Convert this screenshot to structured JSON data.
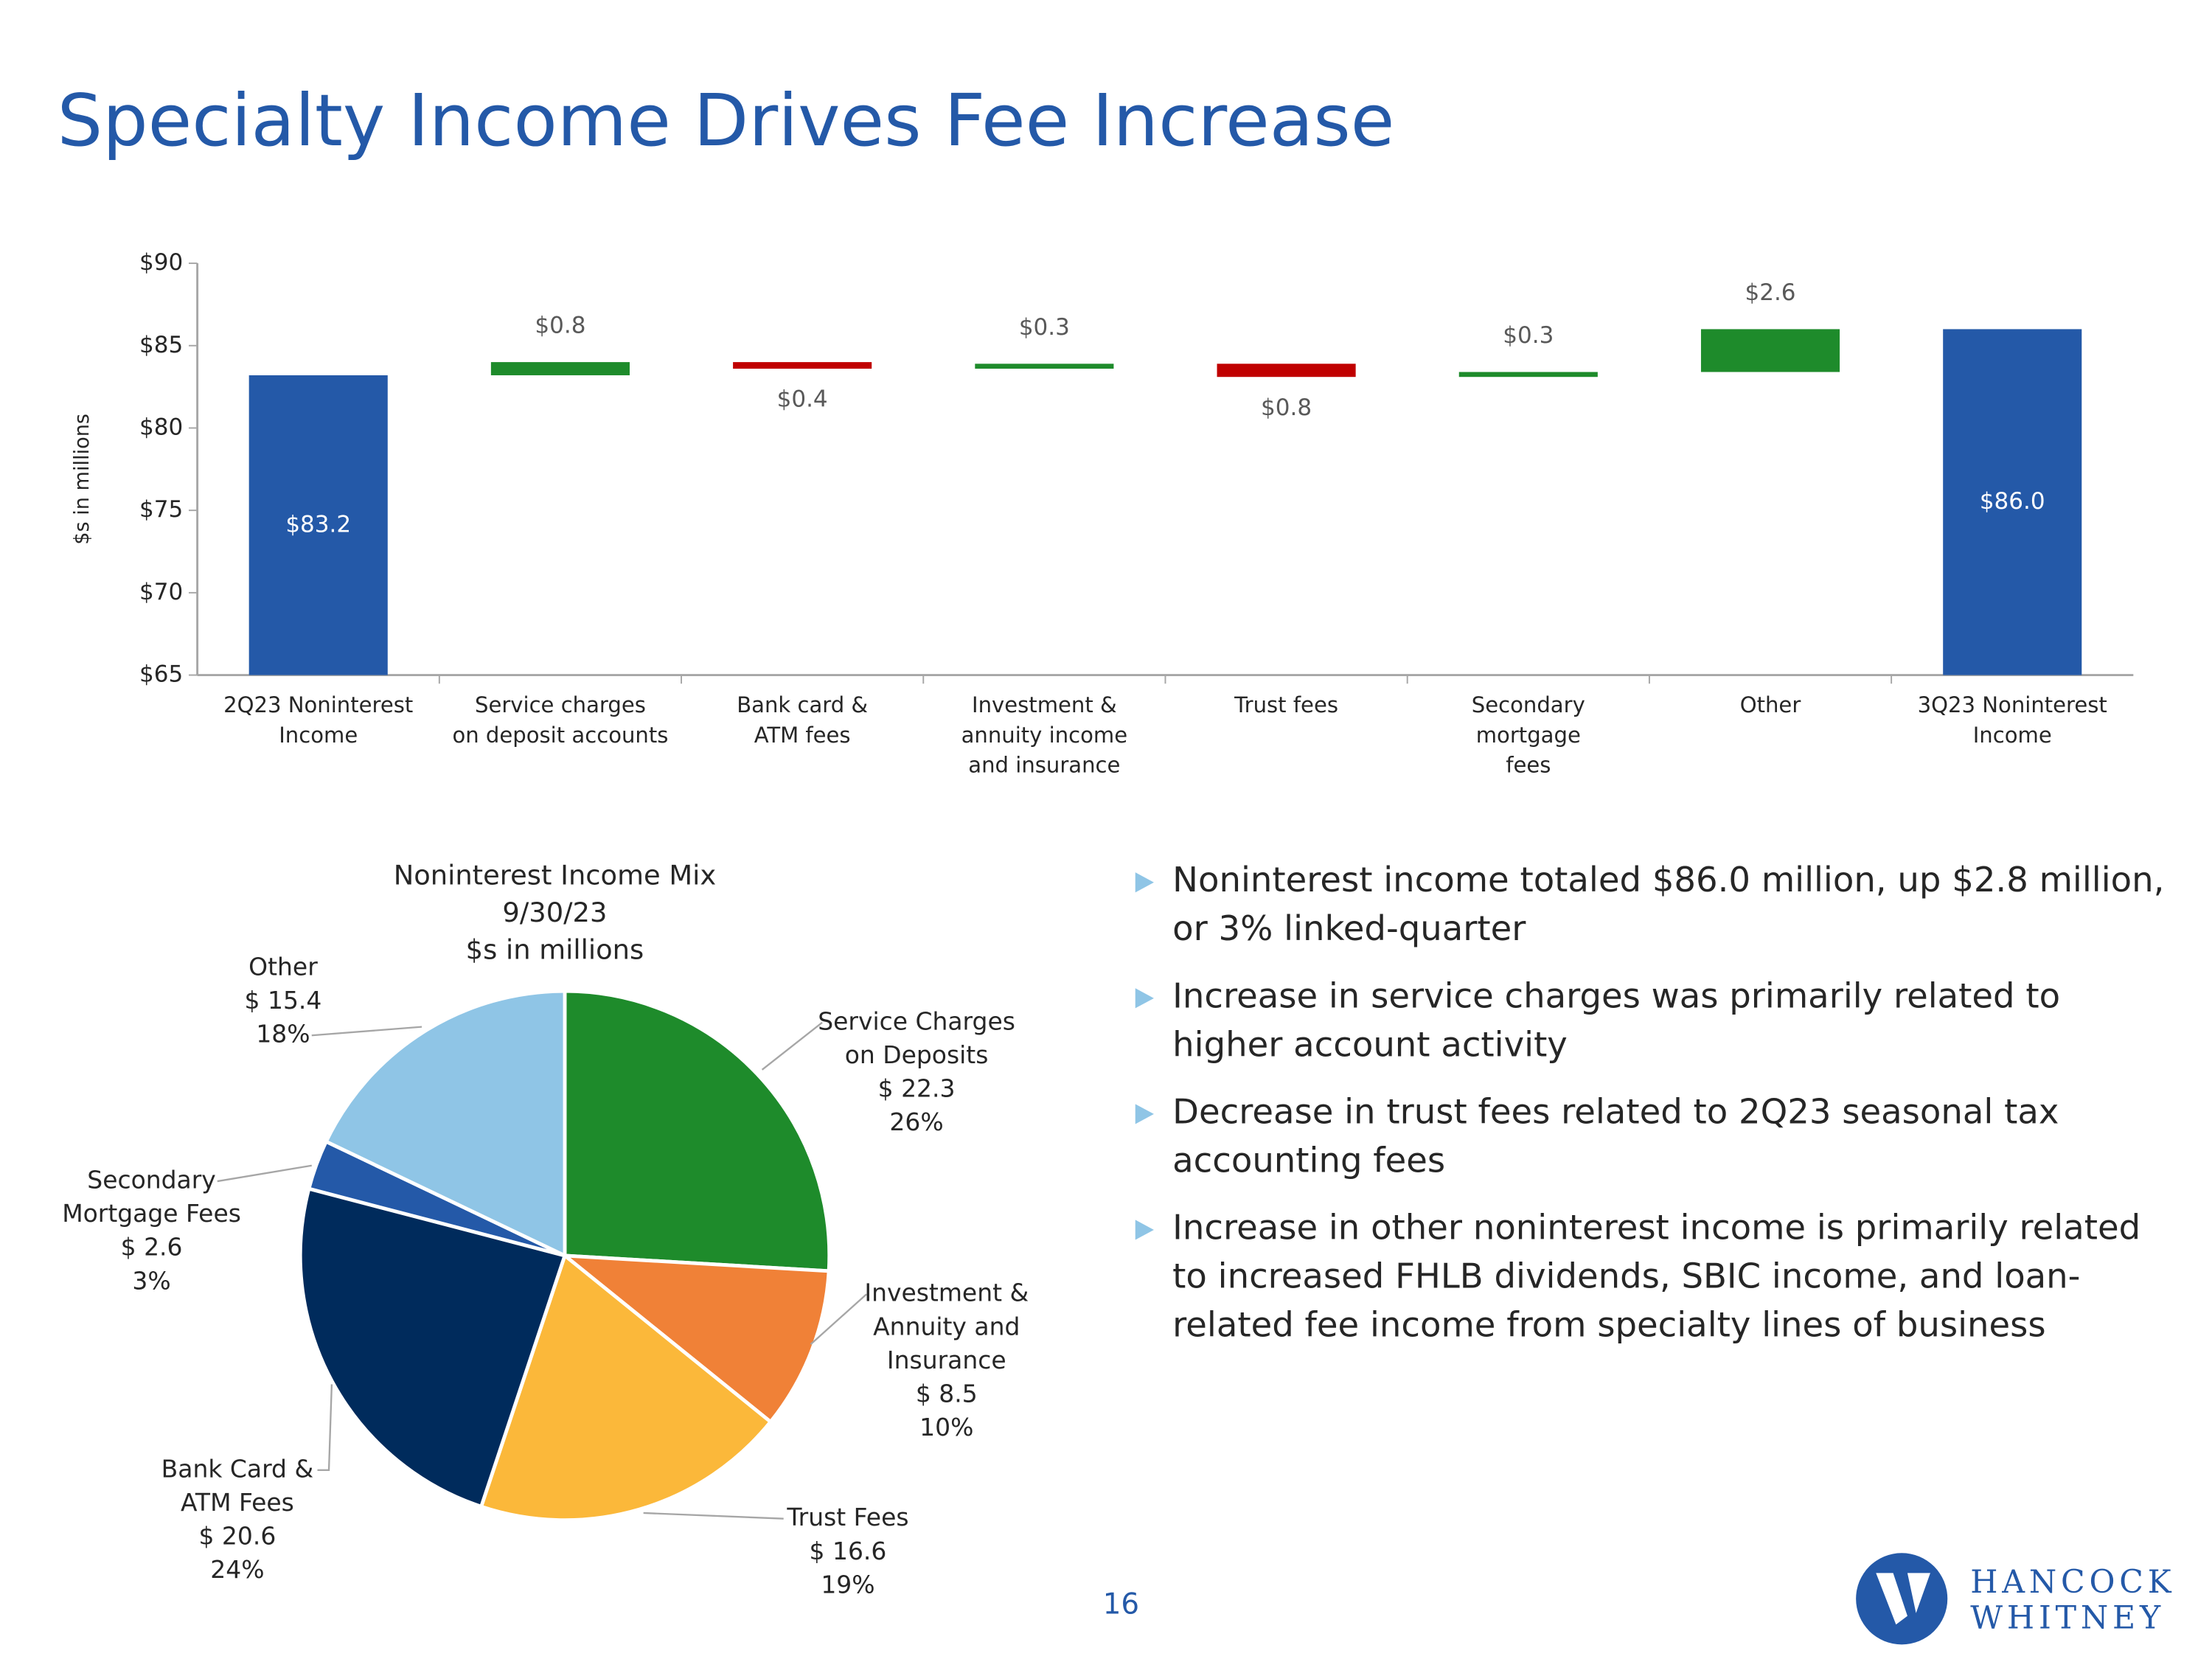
{
  "title": "Specialty Income Drives Fee Increase",
  "chart_data": [
    {
      "type": "waterfall",
      "ylabel": "$s in millions",
      "categories": [
        [
          "2Q23 Noninterest",
          "Income"
        ],
        [
          "Service charges",
          "on deposit accounts"
        ],
        [
          "Bank card &",
          "ATM fees"
        ],
        [
          "Investment &",
          "annuity income",
          "and insurance"
        ],
        [
          "Trust fees"
        ],
        [
          "Secondary",
          "mortgage",
          "fees"
        ],
        [
          "Other"
        ],
        [
          "3Q23 Noninterest",
          "Income"
        ]
      ],
      "measure": [
        "absolute",
        "relative",
        "relative",
        "relative",
        "relative",
        "relative",
        "relative",
        "total"
      ],
      "values": [
        83.2,
        0.8,
        -0.4,
        0.3,
        -0.8,
        0.3,
        2.6,
        86.0
      ],
      "value_labels": [
        "$83.2",
        "$0.8",
        "$0.4",
        "$0.3",
        "$0.8",
        "$0.3",
        "$2.6",
        "$86.0"
      ],
      "colors": {
        "total": "#2459a8",
        "increase": "#1e8b2b",
        "decrease": "#c00000"
      },
      "ylim": [
        65,
        90
      ],
      "yticks": [
        {
          "value": 65,
          "label": "$65"
        },
        {
          "value": 70,
          "label": "$70"
        },
        {
          "value": 75,
          "label": "$75"
        },
        {
          "value": 80,
          "label": "$80"
        },
        {
          "value": 85,
          "label": "$85"
        },
        {
          "value": 90,
          "label": "$90"
        }
      ]
    },
    {
      "type": "pie",
      "title": [
        "Noninterest Income Mix",
        "9/30/23",
        "$s in millions"
      ],
      "categories": [
        [
          "Service Charges",
          "on Deposits"
        ],
        [
          "Investment &",
          "Annuity and",
          "Insurance"
        ],
        [
          "Trust Fees"
        ],
        [
          "Bank Card &",
          "ATM Fees"
        ],
        [
          "Secondary",
          "Mortgage Fees"
        ],
        [
          "Other"
        ]
      ],
      "values": [
        22.3,
        8.5,
        16.6,
        20.6,
        2.6,
        15.4
      ],
      "value_labels": [
        "$ 22.3",
        "$ 8.5",
        "$ 16.6",
        "$ 20.6",
        "$ 2.6",
        "$ 15.4"
      ],
      "percent_labels": [
        "26%",
        "10%",
        "19%",
        "24%",
        "3%",
        "18%"
      ],
      "colors": [
        "#1e8b2b",
        "#f08137",
        "#fbb83a",
        "#002b5c",
        "#2459a8",
        "#8fc5e6"
      ]
    }
  ],
  "bullets": [
    [
      "Noninterest income totaled $86.0 million, up $2.8 million,",
      "or 3% linked-quarter"
    ],
    [
      "Increase in service charges was primarily related to",
      "higher account activity"
    ],
    [
      "Decrease in trust fees related to 2Q23 seasonal tax",
      "accounting fees"
    ],
    [
      "Increase in other noninterest income is primarily related",
      "to increased FHLB dividends, SBIC income, and loan-",
      "related fee income from specialty lines of business"
    ]
  ],
  "page_number": "16",
  "logo": [
    "HANCOCK",
    "WHITNEY"
  ]
}
